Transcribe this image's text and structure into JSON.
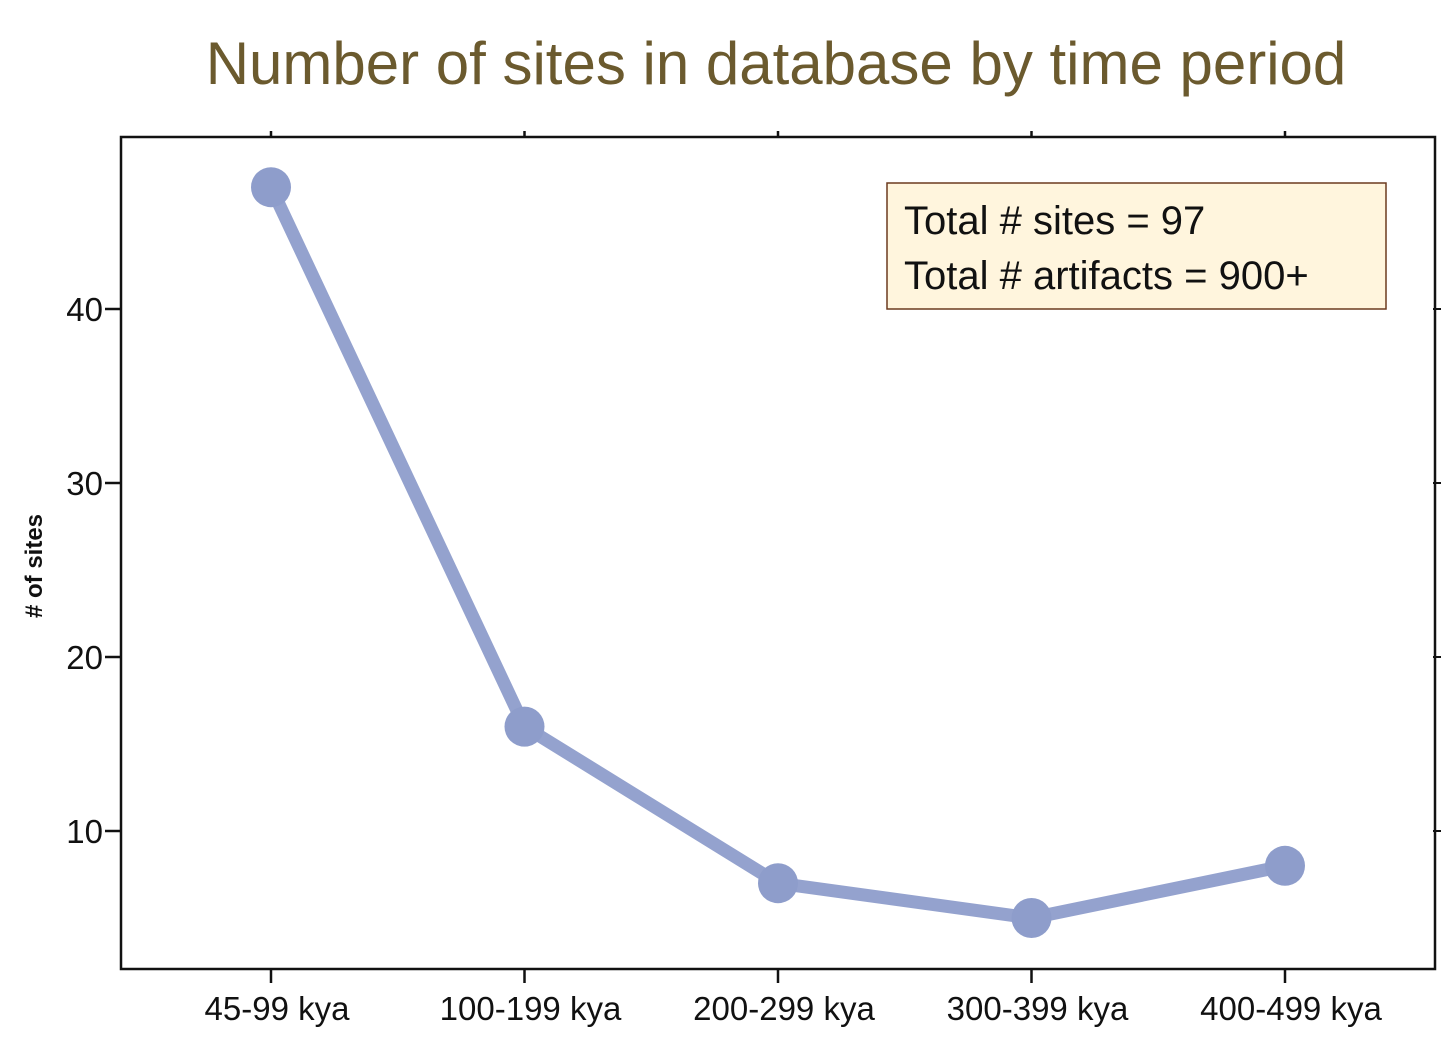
{
  "chart_data": {
    "type": "line",
    "title": "Number of sites in database by time period",
    "xlabel": "",
    "ylabel": "# of sites",
    "categories": [
      "45-99 kya",
      "100-199 kya",
      "200-299 kya",
      "300-399 kya",
      "400-499 kya"
    ],
    "values": [
      47,
      16,
      7,
      5,
      8
    ],
    "ylim": [
      2,
      50
    ],
    "yticks": [
      10,
      20,
      30,
      40
    ],
    "grid": false,
    "legend": "none",
    "annotation": {
      "lines": [
        "Total # sites = 97",
        "Total # artifacts = 900+"
      ],
      "placement": "top-right"
    }
  },
  "colors": {
    "title": "#6b5a2e",
    "series": "#8e9dcb",
    "annotation_bg": "#fff5dd",
    "annotation_border": "#6b3a1e"
  }
}
